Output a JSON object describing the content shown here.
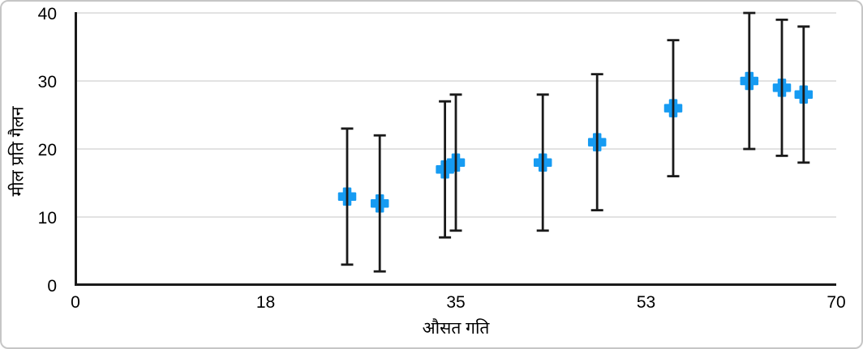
{
  "frame": {
    "background": "#ffffff",
    "border_color": "#c6c6c6"
  },
  "chart_data": {
    "type": "scatter",
    "title": "",
    "xlabel": "औसत गति",
    "ylabel": "मील प्रति गैलन",
    "xlim": [
      0,
      70
    ],
    "ylim": [
      0,
      40
    ],
    "grid": "horizontal-only",
    "legend_position": "none",
    "x_ticks": {
      "positions": [
        0,
        17.5,
        35,
        52.5,
        70
      ],
      "labels": [
        "0",
        "18",
        "35",
        "53",
        "70"
      ]
    },
    "y_ticks": {
      "positions": [
        0,
        10,
        20,
        30,
        40
      ],
      "labels": [
        "0",
        "10",
        "20",
        "30",
        "40"
      ]
    },
    "axis_color": "#1a1a1a",
    "gridline_color": "#d9d9d9",
    "text_color": "#000000",
    "series": [
      {
        "name": "मील प्रति गैलन",
        "marker": "plus",
        "marker_color": "#169bf2",
        "error_bars": {
          "type": "fixed",
          "value": 10,
          "color": "#1a1a1a",
          "caps": true
        },
        "points": [
          {
            "x": 25,
            "y": 13,
            "error_low": 3,
            "error_high": 23
          },
          {
            "x": 28,
            "y": 12,
            "error_low": 2,
            "error_high": 22
          },
          {
            "x": 34,
            "y": 17,
            "error_low": 7,
            "error_high": 27
          },
          {
            "x": 35,
            "y": 18,
            "error_low": 8,
            "error_high": 28
          },
          {
            "x": 43,
            "y": 18,
            "error_low": 8,
            "error_high": 28
          },
          {
            "x": 48,
            "y": 21,
            "error_low": 11,
            "error_high": 31
          },
          {
            "x": 55,
            "y": 26,
            "error_low": 16,
            "error_high": 36
          },
          {
            "x": 62,
            "y": 30,
            "error_low": 20,
            "error_high": 40
          },
          {
            "x": 65,
            "y": 29,
            "error_low": 19,
            "error_high": 39
          },
          {
            "x": 67,
            "y": 28,
            "error_low": 18,
            "error_high": 38
          }
        ]
      }
    ]
  }
}
